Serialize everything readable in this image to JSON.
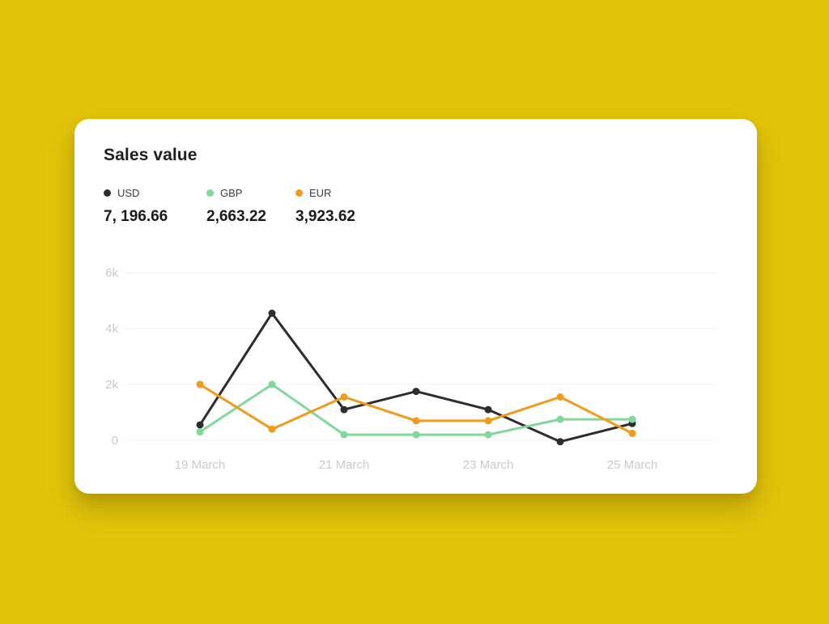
{
  "theme": {
    "background": "#E2C40A",
    "card_background": "#FFFFFF",
    "grid_color": "#F0F0F0",
    "tick_color": "#C9CBCD",
    "title_color": "#1F1F1F"
  },
  "card": {
    "title": "Sales value",
    "legend": [
      {
        "name": "USD",
        "value": "7, 196.66",
        "color": "#2D2D2F"
      },
      {
        "name": "GBP",
        "value": "2,663.22",
        "color": "#82D89A"
      },
      {
        "name": "EUR",
        "value": "3,923.62",
        "color": "#F09B1C"
      }
    ]
  },
  "chart_data": {
    "type": "line",
    "title": "Sales value",
    "x": [
      "19 March",
      "20 March",
      "21 March",
      "22 March",
      "23 March",
      "24 March",
      "25 March"
    ],
    "x_ticks": [
      {
        "i": 0,
        "label": "19 March"
      },
      {
        "i": 2,
        "label": "21 March"
      },
      {
        "i": 4,
        "label": "23 March"
      },
      {
        "i": 6,
        "label": "25 March"
      }
    ],
    "y_ticks": [
      {
        "value": 0,
        "label": "0"
      },
      {
        "value": 2000,
        "label": "2k"
      },
      {
        "value": 4000,
        "label": "4k"
      },
      {
        "value": 6000,
        "label": "6k"
      }
    ],
    "ylim": [
      0,
      6000
    ],
    "grid": true,
    "legend_position": "top",
    "series": [
      {
        "name": "USD",
        "color": "#2D2D2F",
        "values": [
          550,
          4550,
          1100,
          1750,
          1100,
          -50,
          600
        ]
      },
      {
        "name": "GBP",
        "color": "#82D89A",
        "values": [
          300,
          2000,
          200,
          200,
          200,
          750,
          750
        ]
      },
      {
        "name": "EUR",
        "color": "#F09B1C",
        "values": [
          2000,
          400,
          1550,
          700,
          700,
          1550,
          250
        ]
      }
    ]
  }
}
